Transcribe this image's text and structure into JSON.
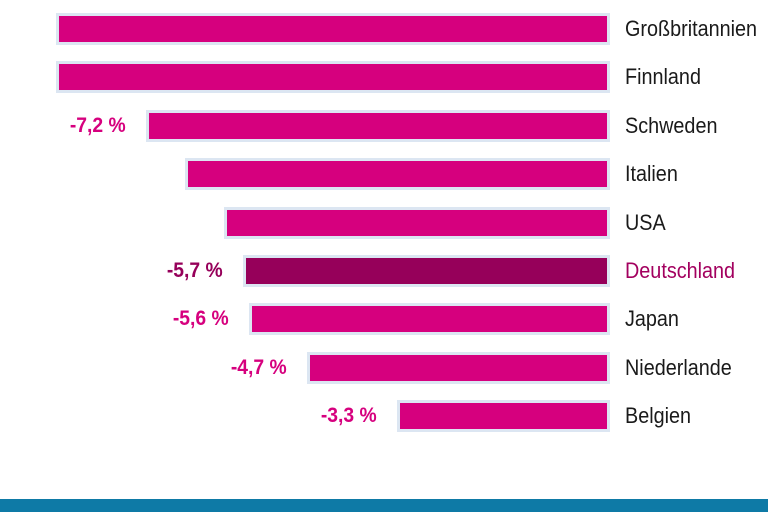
{
  "chart_data": {
    "type": "bar",
    "orientation": "horizontal",
    "unit": "%",
    "value_axis": {
      "min": -8.7,
      "max": 0
    },
    "grid": false,
    "legend": false,
    "bars": [
      {
        "label": "Großbritannien",
        "value": -8.6,
        "value_estimated": true,
        "value_label": "",
        "highlight": false
      },
      {
        "label": "Finnland",
        "value": -8.6,
        "value_estimated": true,
        "value_label": "",
        "highlight": false
      },
      {
        "label": "Schweden",
        "value": -7.2,
        "value_estimated": false,
        "value_label": "-7,2 %",
        "highlight": false
      },
      {
        "label": "Italien",
        "value": -6.6,
        "value_estimated": true,
        "value_label": "",
        "highlight": false
      },
      {
        "label": "USA",
        "value": -6.0,
        "value_estimated": true,
        "value_label": "",
        "highlight": false
      },
      {
        "label": "Deutschland",
        "value": -5.7,
        "value_estimated": false,
        "value_label": "-5,7 %",
        "highlight": true
      },
      {
        "label": "Japan",
        "value": -5.6,
        "value_estimated": false,
        "value_label": "-5,6 %",
        "highlight": false
      },
      {
        "label": "Niederlande",
        "value": -4.7,
        "value_estimated": false,
        "value_label": "-4,7 %",
        "highlight": false
      },
      {
        "label": "Belgien",
        "value": -3.3,
        "value_estimated": false,
        "value_label": "-3,3 %",
        "highlight": false
      }
    ]
  },
  "colors": {
    "bar": "#d6007e",
    "bar_highlight": "#96005a",
    "bar_border": "#dce6f2",
    "country_label": "#1a1a1a",
    "country_label_highlight": "#a3005f",
    "value_label": "#d6007e",
    "value_label_highlight": "#96005a",
    "footer_bar": "#0e7aa6",
    "background": "#ffffff"
  }
}
